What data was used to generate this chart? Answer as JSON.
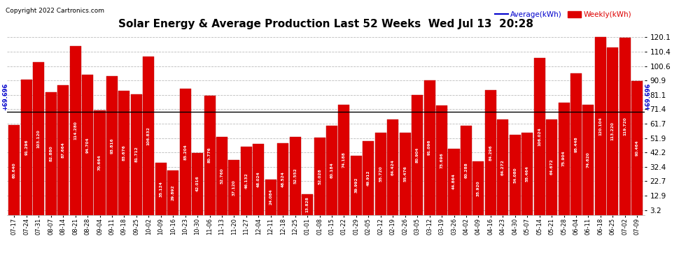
{
  "title": "Solar Energy & Average Production Last 52 Weeks  Wed Jul 13  20:28",
  "copyright": "Copyright 2022 Cartronics.com",
  "average_line": 69.696,
  "bar_color": "#dd0000",
  "average_color": "#0000cc",
  "background_color": "#ffffff",
  "yticks": [
    3.2,
    12.9,
    22.7,
    32.4,
    42.2,
    51.9,
    61.7,
    71.4,
    81.1,
    90.9,
    100.6,
    110.4,
    120.1
  ],
  "ylim": [
    0,
    124
  ],
  "legend_avg": "Average(kWh)",
  "legend_weekly": "Weekly(kWh)",
  "categories": [
    "07-17",
    "07-24",
    "07-31",
    "08-07",
    "08-14",
    "08-21",
    "08-28",
    "09-04",
    "09-11",
    "09-18",
    "09-25",
    "10-02",
    "10-09",
    "10-16",
    "10-23",
    "10-30",
    "11-06",
    "11-13",
    "11-20",
    "11-27",
    "12-04",
    "12-11",
    "12-18",
    "12-25",
    "01-01",
    "01-08",
    "01-15",
    "01-22",
    "01-29",
    "02-05",
    "02-12",
    "02-19",
    "02-26",
    "03-05",
    "03-12",
    "03-19",
    "03-26",
    "04-02",
    "04-09",
    "04-16",
    "04-23",
    "04-30",
    "05-07",
    "05-14",
    "05-21",
    "05-28",
    "06-04",
    "06-11",
    "06-18",
    "06-25",
    "07-02",
    "07-09"
  ],
  "values": [
    60.64,
    91.296,
    103.12,
    82.88,
    87.664,
    114.28,
    94.704,
    70.664,
    93.816,
    83.676,
    81.712,
    106.832,
    35.124,
    29.892,
    85.204,
    42.016,
    80.776,
    52.76,
    37.12,
    46.132,
    48.024,
    24.084,
    48.524,
    52.552,
    13.828,
    52.028,
    60.184,
    74.188,
    39.992,
    49.912,
    55.72,
    64.424,
    55.476,
    80.904,
    91.096,
    73.696,
    44.864,
    60.288,
    35.92,
    84.296,
    64.272,
    54.08,
    55.464,
    106.024,
    64.672,
    75.904,
    95.448,
    74.62,
    120.104,
    113.22,
    119.72,
    90.464
  ]
}
